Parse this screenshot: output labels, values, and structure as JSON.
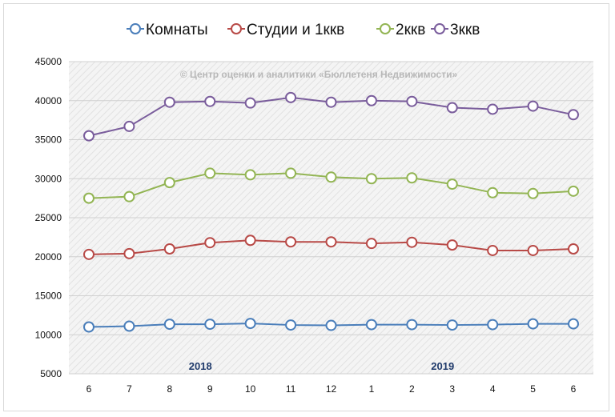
{
  "chart_data": {
    "type": "line",
    "title": "",
    "xlabel": "",
    "ylabel": "",
    "categories": [
      "6",
      "7",
      "8",
      "9",
      "10",
      "11",
      "12",
      "1",
      "2",
      "3",
      "4",
      "5",
      "6"
    ],
    "year_labels": [
      {
        "label": "2018",
        "category_index": 3
      },
      {
        "label": "2019",
        "category_index": 9
      }
    ],
    "watermark": "© Центр оценки и аналитики «Бюллетеня Недвижимости»",
    "ylim": [
      5000,
      45000
    ],
    "yticks": [
      5000,
      10000,
      15000,
      20000,
      25000,
      30000,
      35000,
      40000,
      45000
    ],
    "grid": true,
    "legend_position": "top",
    "background_pattern": "diagonal hatch",
    "series": [
      {
        "name": "Комнаты",
        "color": "#4a7eba",
        "values": [
          11000,
          11100,
          11350,
          11350,
          11450,
          11250,
          11200,
          11300,
          11300,
          11250,
          11300,
          11400,
          11400
        ]
      },
      {
        "name": "Студии и 1ккв",
        "color": "#b84a47",
        "values": [
          20300,
          20400,
          21000,
          21800,
          22100,
          21900,
          21900,
          21700,
          21850,
          21500,
          20800,
          20800,
          21000
        ]
      },
      {
        "name": "2ккв",
        "color": "#93b554",
        "values": [
          27500,
          27700,
          29500,
          30700,
          30500,
          30700,
          30200,
          30000,
          30100,
          29300,
          28200,
          28100,
          28400
        ]
      },
      {
        "name": "3ккв",
        "color": "#7a5d9c",
        "values": [
          35500,
          36700,
          39800,
          39900,
          39700,
          40400,
          39800,
          40000,
          39900,
          39100,
          38900,
          39300,
          38200
        ]
      }
    ]
  }
}
